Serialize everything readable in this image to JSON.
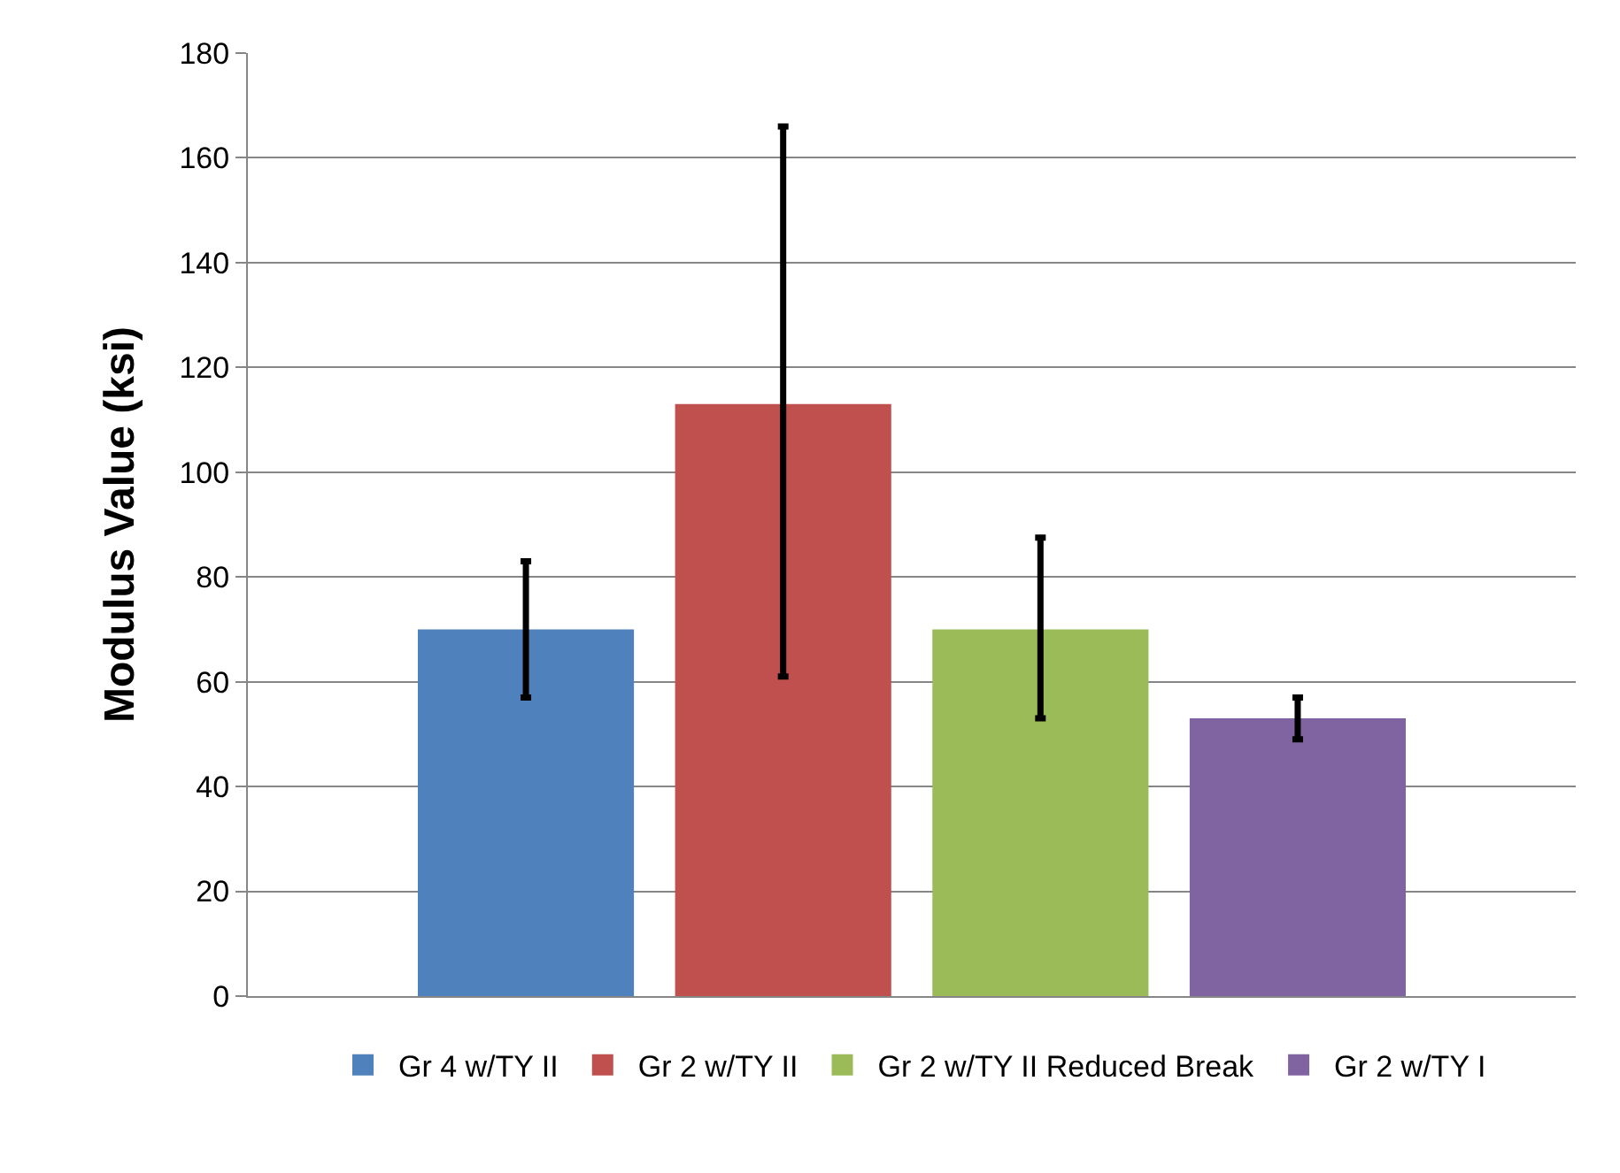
{
  "chart_data": {
    "type": "bar",
    "ylabel": "Modulus Value (ksi)",
    "categories": [
      null
    ],
    "series": [
      {
        "name": "Gr 4 w/TY II",
        "color": "#4f81bd",
        "values": [
          70
        ],
        "errors": [
          [
            57,
            83
          ]
        ]
      },
      {
        "name": "Gr 2 w/TY II",
        "color": "#c0504d",
        "values": [
          113
        ],
        "errors": [
          [
            61,
            166
          ]
        ]
      },
      {
        "name": "Gr 2 w/TY II Reduced Break",
        "color": "#9bbb59",
        "values": [
          70
        ],
        "errors": [
          [
            53,
            87.5
          ]
        ]
      },
      {
        "name": "Gr 2 w/TY I",
        "color": "#8064a2",
        "values": [
          53
        ],
        "errors": [
          [
            49,
            57
          ]
        ]
      }
    ],
    "ylim": [
      0,
      180
    ],
    "yticks": [
      0,
      20,
      40,
      60,
      80,
      100,
      120,
      140,
      160,
      180
    ],
    "grid": "y",
    "legend": "bottom"
  }
}
